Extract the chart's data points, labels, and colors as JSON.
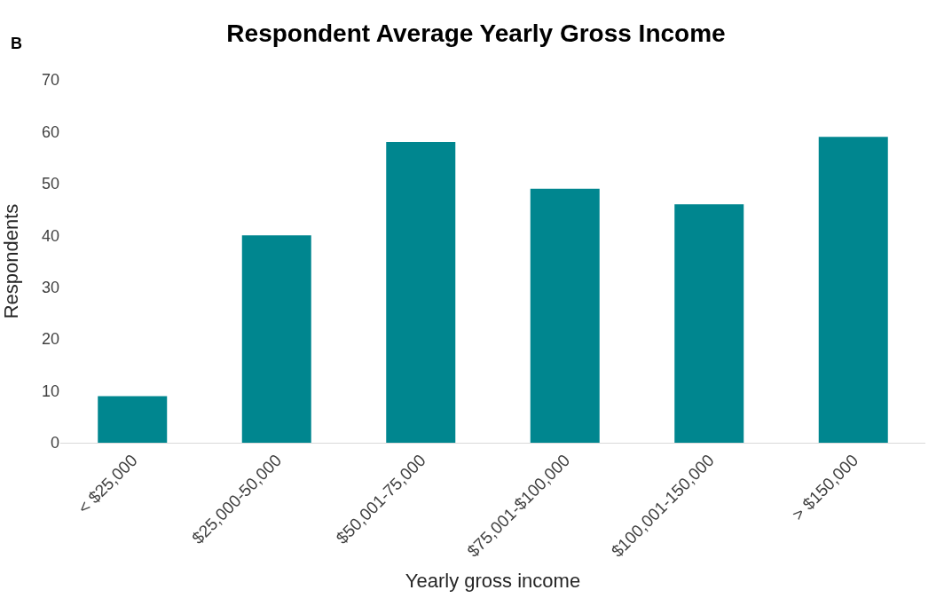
{
  "chart_data": {
    "type": "bar",
    "title": "Respondent Average Yearly Gross Income",
    "xlabel": "Yearly gross income",
    "ylabel": "Respondents",
    "annotations": [
      "B"
    ],
    "categories": [
      "< $25,000",
      "$25,000-50,000",
      "$50,001-75,000",
      "$75,001-$100,000",
      "$100,001-150,000",
      "> $150,000"
    ],
    "values": [
      9,
      40,
      58,
      49,
      46,
      59
    ],
    "color": "#00868f",
    "ylim": [
      0,
      70
    ],
    "yticks": [
      0,
      10,
      20,
      30,
      40,
      50,
      60,
      70
    ],
    "grid": false
  }
}
